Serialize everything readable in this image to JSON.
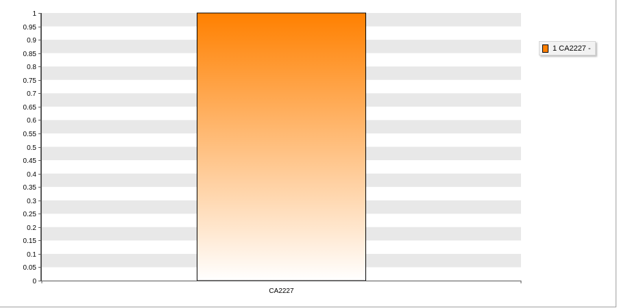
{
  "chart_data": {
    "type": "bar",
    "categories": [
      "CA2227"
    ],
    "series": [
      {
        "name": "1 CA2227 -",
        "values": [
          1
        ],
        "color": "#ff8000"
      }
    ],
    "ylim": [
      0,
      1
    ],
    "yticks": [
      0,
      0.05,
      0.1,
      0.15,
      0.2,
      0.25,
      0.3,
      0.35,
      0.4,
      0.45,
      0.5,
      0.55,
      0.6,
      0.65,
      0.7,
      0.75,
      0.8,
      0.85,
      0.9,
      0.95,
      1
    ],
    "ytick_labels": [
      "0",
      "0.05",
      "0.1",
      "0.15",
      "0.2",
      "0.25",
      "0.3",
      "0.35",
      "0.4",
      "0.45",
      "0.5",
      "0.55",
      "0.6",
      "0.65",
      "0.7",
      "0.75",
      "0.8",
      "0.85",
      "0.9",
      "0.95",
      "1"
    ],
    "grid": "alternating horizontal bands",
    "band_color": "#e8e8e8",
    "legend_position": "right",
    "title": "",
    "xlabel": "",
    "ylabel": ""
  },
  "legend": {
    "label": "1 CA2227 -"
  }
}
